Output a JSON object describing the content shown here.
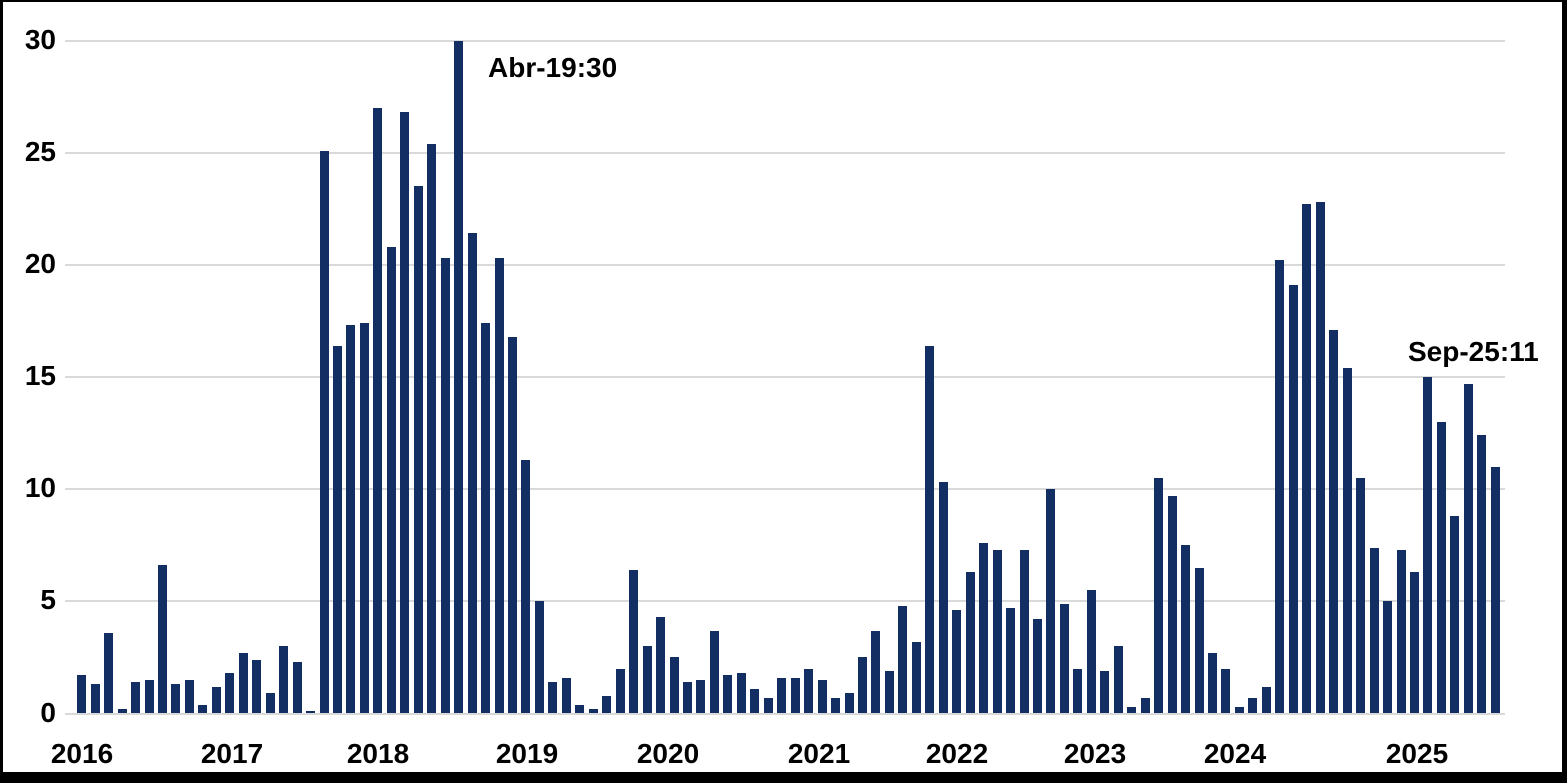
{
  "chart_data": {
    "type": "bar",
    "title": "",
    "xlabel": "",
    "ylabel": "",
    "ylim": [
      0,
      30
    ],
    "y_ticks": [
      0,
      5,
      10,
      15,
      20,
      25,
      30
    ],
    "x_tick_labels": [
      "2016",
      "2017",
      "2018",
      "2019",
      "2020",
      "2021",
      "2022",
      "2023",
      "2024",
      "2025"
    ],
    "grid": "horizontal",
    "legend": "none",
    "bar_color": "#132e62",
    "gridline_color": "#d9d9d9",
    "values": [
      1.7,
      1.3,
      3.6,
      0.2,
      1.4,
      1.5,
      6.6,
      1.3,
      1.5,
      0.4,
      1.2,
      1.8,
      2.7,
      2.4,
      0.9,
      3.0,
      2.3,
      0.1,
      25.1,
      16.4,
      17.3,
      17.4,
      27.0,
      20.8,
      26.8,
      23.5,
      25.4,
      20.3,
      30.0,
      21.4,
      17.4,
      20.3,
      16.8,
      11.3,
      5.0,
      1.4,
      1.6,
      0.4,
      0.2,
      0.8,
      2.0,
      6.4,
      3.0,
      4.3,
      2.5,
      1.4,
      1.5,
      3.7,
      1.7,
      1.8,
      1.1,
      0.7,
      1.6,
      1.6,
      2.0,
      1.5,
      0.7,
      0.9,
      2.5,
      3.7,
      1.9,
      4.8,
      3.2,
      16.4,
      10.3,
      4.6,
      6.3,
      7.6,
      7.3,
      4.7,
      7.3,
      4.2,
      10.0,
      4.9,
      2.0,
      5.5,
      1.9,
      3.0,
      0.3,
      0.7,
      10.5,
      9.7,
      7.5,
      6.5,
      2.7,
      2.0,
      0.3,
      0.7,
      1.2,
      20.2,
      19.1,
      22.7,
      22.8,
      17.1,
      15.4,
      10.5,
      7.4,
      5.0,
      7.3,
      6.3,
      15.0,
      13.0,
      8.8,
      14.7,
      12.4,
      11.0
    ],
    "annotations": [
      {
        "text": "Abr-19:30",
        "bar_index": 28,
        "value": 30
      },
      {
        "text": "Sep-25:11",
        "bar_index": 105,
        "value": 11
      }
    ]
  }
}
